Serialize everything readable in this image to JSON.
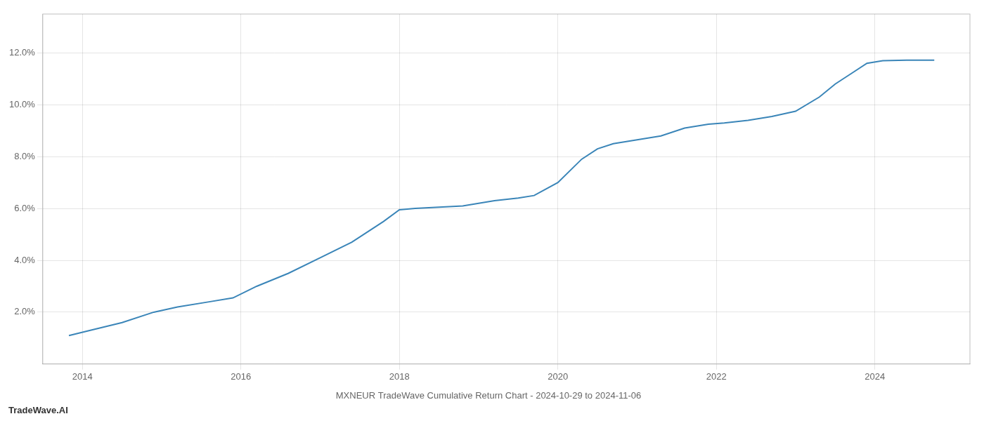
{
  "chart_data": {
    "type": "line",
    "title": "MXNEUR TradeWave Cumulative Return Chart - 2024-10-29 to 2024-11-06",
    "annotations": [
      "TradeWave.AI"
    ],
    "x": [
      2013.83,
      2014.1,
      2014.5,
      2014.9,
      2015.2,
      2015.6,
      2015.9,
      2016.2,
      2016.6,
      2017.0,
      2017.4,
      2017.8,
      2018.0,
      2018.2,
      2018.5,
      2018.8,
      2019.0,
      2019.2,
      2019.5,
      2019.7,
      2020.0,
      2020.3,
      2020.5,
      2020.7,
      2021.0,
      2021.3,
      2021.6,
      2021.9,
      2022.1,
      2022.4,
      2022.7,
      2023.0,
      2023.3,
      2023.5,
      2023.7,
      2023.9,
      2024.1,
      2024.4,
      2024.75
    ],
    "values": [
      1.1,
      1.3,
      1.6,
      2.0,
      2.2,
      2.4,
      2.55,
      3.0,
      3.5,
      4.1,
      4.7,
      5.5,
      5.95,
      6.0,
      6.05,
      6.1,
      6.2,
      6.3,
      6.4,
      6.5,
      7.0,
      7.9,
      8.3,
      8.5,
      8.65,
      8.8,
      9.1,
      9.25,
      9.3,
      9.4,
      9.55,
      9.75,
      10.3,
      10.8,
      11.2,
      11.6,
      11.7,
      11.72,
      11.72
    ],
    "color": "#3a85b8",
    "xlim": [
      2013.5,
      2025.2
    ],
    "ylim": [
      0.0,
      13.5
    ],
    "xticks": [
      2014,
      2016,
      2018,
      2020,
      2022,
      2024
    ],
    "yticks": [
      {
        "value": 2.0,
        "label": "2.0%"
      },
      {
        "value": 4.0,
        "label": "4.0%"
      },
      {
        "value": 6.0,
        "label": "6.0%"
      },
      {
        "value": 8.0,
        "label": "8.0%"
      },
      {
        "value": 10.0,
        "label": "10.0%"
      },
      {
        "value": 12.0,
        "label": "12.0%"
      }
    ],
    "grid": true
  }
}
